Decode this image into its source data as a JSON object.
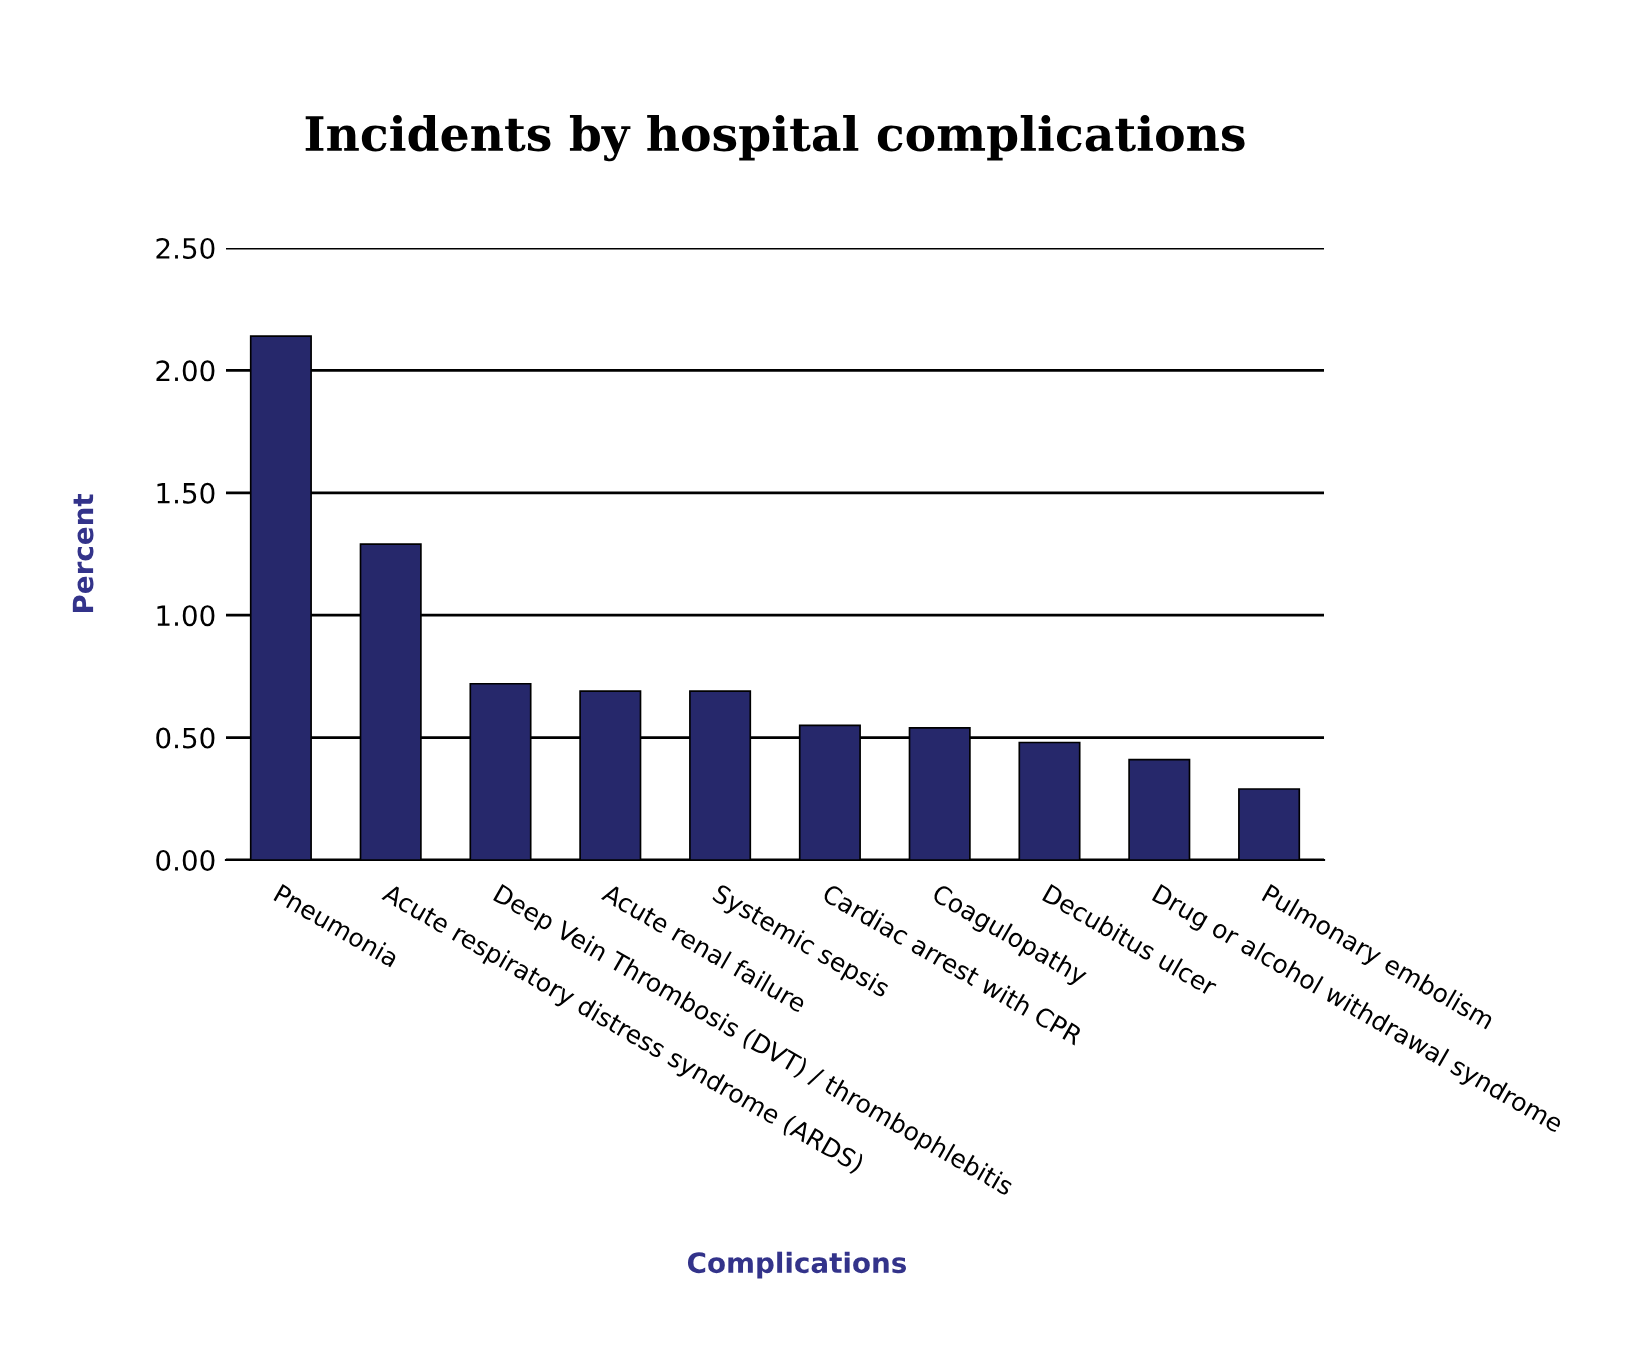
{
  "chart_data": {
    "type": "bar",
    "title": "Incidents by hospital complications",
    "xlabel": "Complications",
    "ylabel": "Percent",
    "categories": [
      "Pneumonia",
      "Acute respiratory distress syndrome (ARDS)",
      "Deep Vein Thrombosis (DVT) / thrombophlebitis",
      "Acute renal failure",
      "Systemic sepsis",
      "Cardiac arrest with CPR",
      "Coagulopathy",
      "Decubitus ulcer",
      "Drug or alcohol withdrawal syndrome",
      "Pulmonary embolism"
    ],
    "values": [
      2.14,
      1.29,
      0.72,
      0.69,
      0.69,
      0.55,
      0.54,
      0.48,
      0.41,
      0.29
    ],
    "color": "#26286b",
    "ylim": [
      0,
      2.5
    ],
    "yticks": [
      {
        "value": 0,
        "label": "0.00"
      },
      {
        "value": 0.5,
        "label": "0.50"
      },
      {
        "value": 1,
        "label": "1.00"
      },
      {
        "value": 1.5,
        "label": "1.50"
      },
      {
        "value": 2,
        "label": "2.00"
      },
      {
        "value": 2.5,
        "label": "2.50"
      }
    ],
    "grid": "y"
  }
}
